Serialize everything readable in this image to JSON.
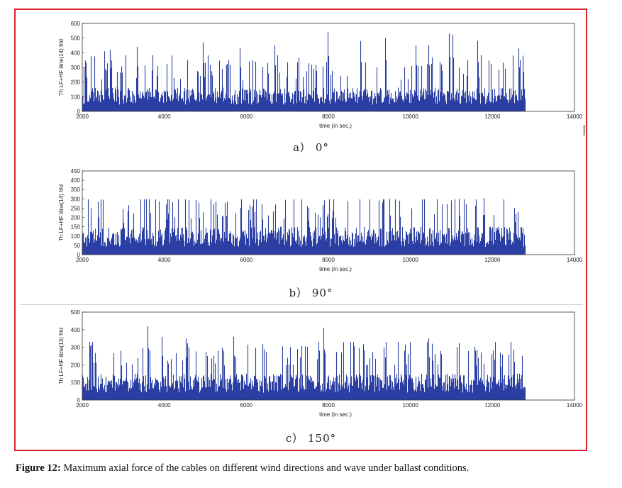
{
  "panels": [
    {
      "label": "a） 0°"
    },
    {
      "label": "b） 90°"
    },
    {
      "label": "c） 150°"
    }
  ],
  "caption": {
    "bold": "Figure 12:",
    "text": " Maximum axial force of the cables on different wind directions and wave under ballast conditions."
  },
  "colors": {
    "frame": "#d8232a",
    "bars": "#2b3fa3"
  },
  "chart_data": [
    {
      "type": "bar",
      "xlabel": "time (in sec.)",
      "ylabel": "Th LF+HF iline(14) frld",
      "xlim": [
        2000,
        14000
      ],
      "ylim": [
        0,
        600
      ],
      "xticks": [
        2000,
        4000,
        6000,
        8000,
        10000,
        12000,
        14000
      ],
      "yticks": [
        0,
        100,
        200,
        300,
        400,
        500,
        600
      ],
      "data_end_x": 12800,
      "baseline_approx": 130,
      "peaks": [
        {
          "x": 2100,
          "y": 330
        },
        {
          "x": 2550,
          "y": 410
        },
        {
          "x": 2700,
          "y": 420
        },
        {
          "x": 3350,
          "y": 440
        },
        {
          "x": 4950,
          "y": 470
        },
        {
          "x": 5850,
          "y": 430
        },
        {
          "x": 6700,
          "y": 450
        },
        {
          "x": 8000,
          "y": 540
        },
        {
          "x": 8800,
          "y": 480
        },
        {
          "x": 9400,
          "y": 500
        },
        {
          "x": 10150,
          "y": 450
        },
        {
          "x": 10450,
          "y": 450
        },
        {
          "x": 10950,
          "y": 530
        },
        {
          "x": 11050,
          "y": 520
        },
        {
          "x": 11650,
          "y": 480
        },
        {
          "x": 12650,
          "y": 430
        },
        {
          "x": 12750,
          "y": 380
        }
      ]
    },
    {
      "type": "bar",
      "xlabel": "time (in sec.)",
      "ylabel": "Th LF+HF iline(14) frld",
      "xlim": [
        2000,
        14000
      ],
      "ylim": [
        0,
        450
      ],
      "xticks": [
        2000,
        4000,
        6000,
        8000,
        10000,
        12000,
        14000
      ],
      "yticks": [
        0,
        50,
        100,
        150,
        200,
        250,
        300,
        350,
        400,
        450
      ],
      "data_end_x": 12800,
      "baseline_approx": 120,
      "peaks": [
        {
          "x": 2400,
          "y": 285
        },
        {
          "x": 3000,
          "y": 245
        },
        {
          "x": 4050,
          "y": 270
        },
        {
          "x": 4850,
          "y": 280
        },
        {
          "x": 6100,
          "y": 265
        },
        {
          "x": 6400,
          "y": 270
        },
        {
          "x": 7500,
          "y": 260
        },
        {
          "x": 9500,
          "y": 300
        },
        {
          "x": 9750,
          "y": 290
        },
        {
          "x": 11200,
          "y": 300
        },
        {
          "x": 11800,
          "y": 305
        },
        {
          "x": 12550,
          "y": 250
        }
      ]
    },
    {
      "type": "bar",
      "xlabel": "time (in sec.)",
      "ylabel": "Th LF+HF iline(13) frld",
      "xlim": [
        2000,
        14000
      ],
      "ylim": [
        0,
        500
      ],
      "xticks": [
        2000,
        4000,
        6000,
        8000,
        10000,
        12000,
        14000
      ],
      "yticks": [
        0,
        100,
        200,
        300,
        400,
        500
      ],
      "data_end_x": 12800,
      "baseline_approx": 120,
      "peaks": [
        {
          "x": 2000,
          "y": 200
        },
        {
          "x": 2950,
          "y": 280
        },
        {
          "x": 3600,
          "y": 420
        },
        {
          "x": 3950,
          "y": 360
        },
        {
          "x": 4550,
          "y": 350
        },
        {
          "x": 5450,
          "y": 280
        },
        {
          "x": 5700,
          "y": 360
        },
        {
          "x": 7900,
          "y": 410
        },
        {
          "x": 10450,
          "y": 350
        },
        {
          "x": 10550,
          "y": 320
        },
        {
          "x": 11600,
          "y": 280
        },
        {
          "x": 12200,
          "y": 270
        },
        {
          "x": 12800,
          "y": 70
        }
      ]
    }
  ]
}
